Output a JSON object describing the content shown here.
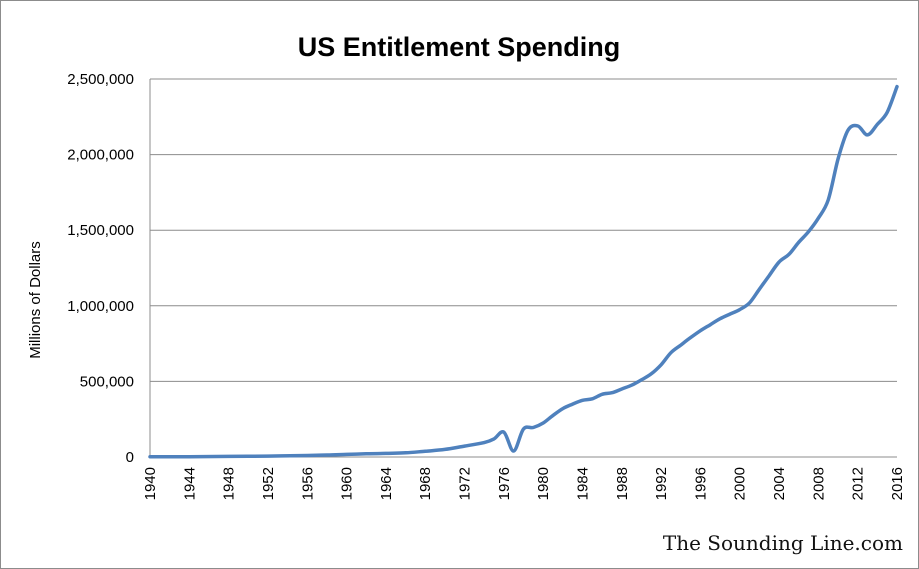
{
  "chart_data": {
    "type": "line",
    "title": "US Entitlement Spending",
    "xlabel": "",
    "ylabel": "Millions of Dollars",
    "xlim": [
      1940,
      2016
    ],
    "ylim": [
      0,
      2500000
    ],
    "grid": true,
    "legend": "none",
    "line_color": "#4f81bd",
    "x_ticks": [
      "1940",
      "1944",
      "1948",
      "1952",
      "1956",
      "1960",
      "1964",
      "1968",
      "1972",
      "1976",
      "1980",
      "1984",
      "1988",
      "1992",
      "1996",
      "2000",
      "2004",
      "2008",
      "2012",
      "2016"
    ],
    "y_ticks": [
      "0",
      "500,000",
      "1,000,000",
      "1,500,000",
      "2,000,000",
      "2,500,000"
    ],
    "series": [
      {
        "x": [
          1940,
          1944,
          1948,
          1952,
          1956,
          1958,
          1960,
          1962,
          1964,
          1966,
          1968,
          1970,
          1972,
          1974,
          1975,
          1976,
          1977,
          1978,
          1979,
          1980,
          1981,
          1982,
          1983,
          1984,
          1985,
          1986,
          1987,
          1988,
          1989,
          1990,
          1991,
          1992,
          1993,
          1994,
          1995,
          1996,
          1997,
          1998,
          1999,
          2000,
          2001,
          2002,
          2003,
          2004,
          2005,
          2006,
          2007,
          2008,
          2009,
          2010,
          2011,
          2012,
          2013,
          2014,
          2015,
          2016
        ],
        "y": [
          1000,
          2000,
          4000,
          6000,
          10000,
          13000,
          17000,
          21000,
          24000,
          28000,
          38000,
          50000,
          72000,
          95000,
          120000,
          165000,
          40000,
          185000,
          195000,
          225000,
          275000,
          320000,
          350000,
          375000,
          385000,
          415000,
          425000,
          450000,
          475000,
          510000,
          550000,
          610000,
          690000,
          740000,
          790000,
          835000,
          875000,
          915000,
          945000,
          975000,
          1020000,
          1110000,
          1200000,
          1290000,
          1340000,
          1420000,
          1490000,
          1580000,
          1700000,
          1970000,
          2160000,
          2190000,
          2130000,
          2200000,
          2280000,
          2450000
        ]
      }
    ]
  },
  "watermark": "The Sounding Line.com"
}
